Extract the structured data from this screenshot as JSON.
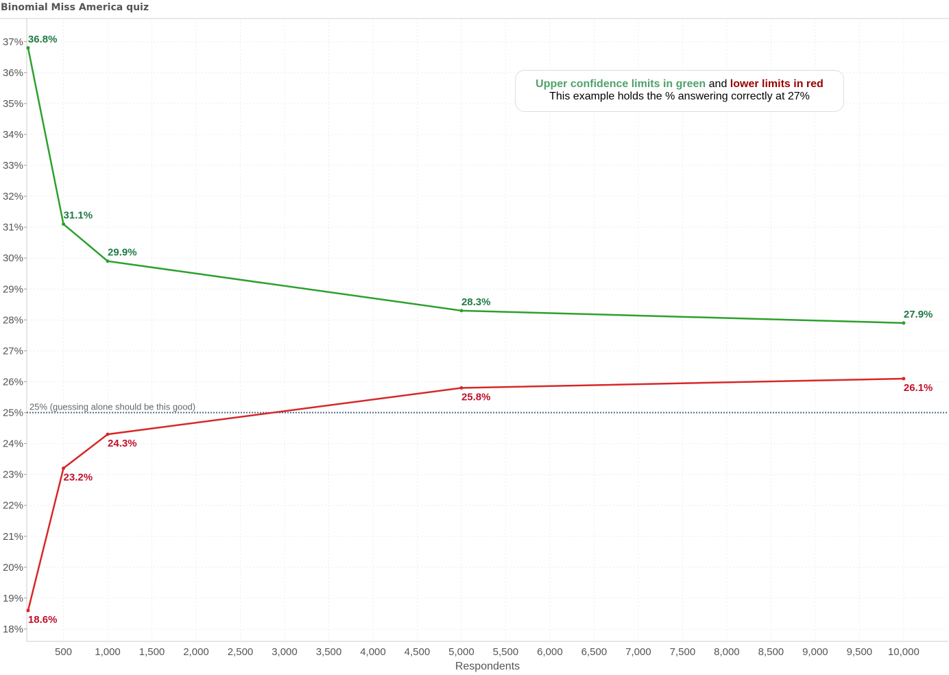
{
  "title": "Binomial Miss America quiz",
  "note": {
    "green_text": "Upper confidence limits in green",
    "and_text": " and ",
    "red_text": "lower limits in red",
    "line2": "This example holds the % answering correctly at 27%"
  },
  "colors": {
    "upper": "#2ca02c",
    "upper_label": "#1f7a45",
    "lower": "#d62728",
    "lower_label": "#c0102a",
    "reference": "#4e6a8a",
    "note_green": "#4ea26a",
    "note_red": "#990000"
  },
  "chart_data": {
    "type": "line",
    "title": "Binomial Miss America quiz",
    "xlabel": "Respondents",
    "ylabel": "",
    "xlim": [
      85,
      10505
    ],
    "ylim": [
      17.6,
      37.75
    ],
    "x_ticks": [
      500,
      1000,
      1500,
      2000,
      2500,
      3000,
      3500,
      4000,
      4500,
      5000,
      5500,
      6000,
      6500,
      7000,
      7500,
      8000,
      8500,
      9000,
      9500,
      10000
    ],
    "x_tick_labels": [
      "500",
      "1,000",
      "1,500",
      "2,000",
      "2,500",
      "3,000",
      "3,500",
      "4,000",
      "4,500",
      "5,000",
      "5,500",
      "6,000",
      "6,500",
      "7,000",
      "7,500",
      "8,000",
      "8,500",
      "9,000",
      "9,500",
      "10,000"
    ],
    "y_ticks": [
      18,
      19,
      20,
      21,
      22,
      23,
      24,
      25,
      26,
      27,
      28,
      29,
      30,
      31,
      32,
      33,
      34,
      35,
      36,
      37
    ],
    "y_tick_labels": [
      "18%",
      "19%",
      "20%",
      "21%",
      "22%",
      "23%",
      "24%",
      "25%",
      "26%",
      "27%",
      "28%",
      "29%",
      "30%",
      "31%",
      "32%",
      "33%",
      "34%",
      "35%",
      "36%",
      "37%"
    ],
    "grid": true,
    "x": [
      100,
      500,
      1000,
      5000,
      10000
    ],
    "series": [
      {
        "name": "Upper confidence limit",
        "values": [
          36.8,
          31.1,
          29.9,
          28.3,
          27.9
        ],
        "labels": [
          "36.8%",
          "31.1%",
          "29.9%",
          "28.3%",
          "27.9%"
        ]
      },
      {
        "name": "Lower confidence limit",
        "values": [
          18.6,
          23.2,
          24.3,
          25.8,
          26.1
        ],
        "labels": [
          "18.6%",
          "23.2%",
          "24.3%",
          "25.8%",
          "26.1%"
        ]
      }
    ],
    "reference_line": {
      "value": 25,
      "label": "25% (guessing alone should be this good)"
    }
  }
}
